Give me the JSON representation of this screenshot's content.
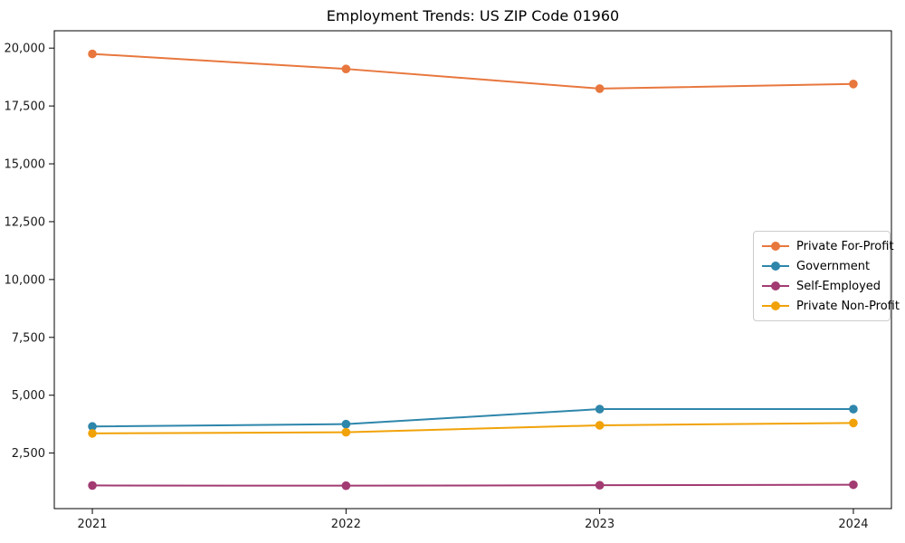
{
  "figure": {
    "background": "#ffffff",
    "axis_color": "#000000",
    "tick_label_color": "#1a1a1a",
    "legend_border_color": "#cccccc"
  },
  "chart_data": {
    "type": "line",
    "title": "Employment Trends: US ZIP Code 01960",
    "categories": [
      "2021",
      "2022",
      "2023",
      "2024"
    ],
    "x": [
      2021,
      2022,
      2023,
      2024
    ],
    "series": [
      {
        "name": "Private For-Profit",
        "color": "#e8773e",
        "values": [
          19750,
          19100,
          18250,
          18450
        ]
      },
      {
        "name": "Government",
        "color": "#2e86ab",
        "values": [
          3650,
          3750,
          4400,
          4400
        ]
      },
      {
        "name": "Self-Employed",
        "color": "#a23b72",
        "values": [
          1100,
          1090,
          1110,
          1130
        ]
      },
      {
        "name": "Private Non-Profit",
        "color": "#f1a208",
        "values": [
          3350,
          3400,
          3700,
          3800
        ]
      }
    ],
    "xlim": [
      2020.85,
      2024.15
    ],
    "ylim": [
      100,
      20750
    ],
    "yticks": [
      2500,
      5000,
      7500,
      10000,
      12500,
      15000,
      17500,
      20000
    ],
    "ytick_labels": [
      "2,500",
      "5,000",
      "7,500",
      "10,000",
      "12,500",
      "15,000",
      "17,500",
      "20,000"
    ],
    "grid": false,
    "legend_position": "center-right",
    "marker": "circle"
  }
}
